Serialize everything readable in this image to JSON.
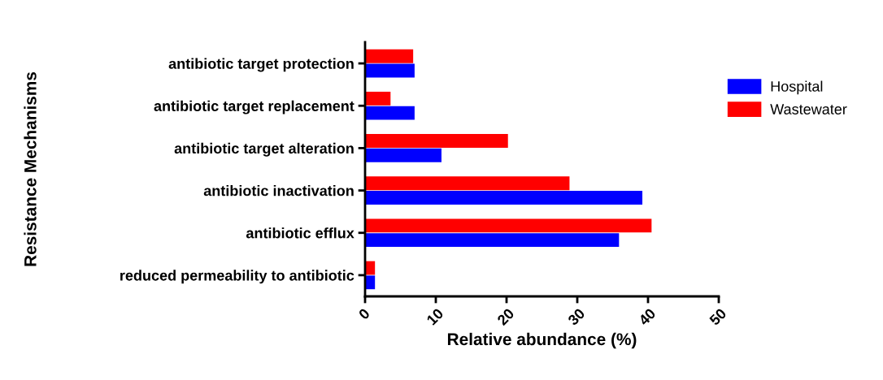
{
  "chart_data": {
    "type": "bar",
    "orientation": "horizontal",
    "xlabel": "Relative abundance (%)",
    "ylabel": "Resistance Mechanisms",
    "categories": [
      "antibiotic target protection",
      "antibiotic target replacement",
      "antibiotic target alteration",
      "antibiotic inactivation",
      "antibiotic efflux",
      "reduced permeability to antibiotic"
    ],
    "series": [
      {
        "name": "Hospital",
        "color": "#0000ff",
        "values": [
          7.0,
          7.0,
          10.8,
          39.2,
          35.9,
          1.4
        ]
      },
      {
        "name": "Wastewater",
        "color": "#ff0000",
        "values": [
          6.8,
          3.6,
          20.2,
          28.9,
          40.5,
          1.4
        ]
      }
    ],
    "xlim": [
      0,
      50
    ],
    "xticks": [
      0,
      10,
      20,
      30,
      40,
      50
    ],
    "grid": false,
    "legend": "right"
  }
}
